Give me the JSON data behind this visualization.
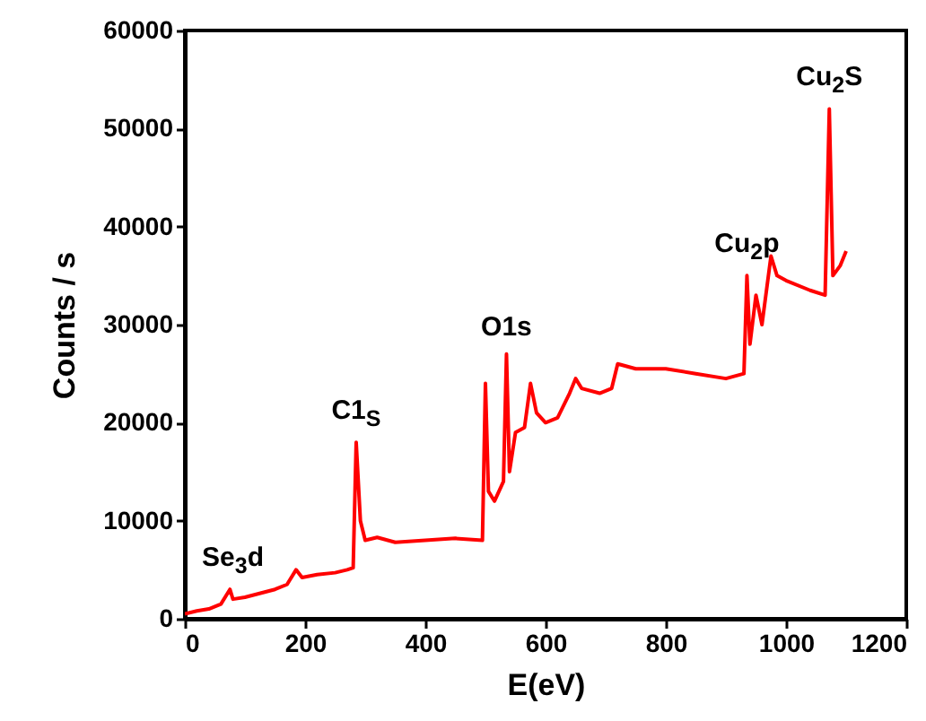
{
  "chart_data": {
    "type": "line",
    "xlabel": "E(eV)",
    "ylabel": "Counts / s",
    "xlim": [
      0,
      1200
    ],
    "xticks": [
      0,
      200,
      400,
      600,
      800,
      1000,
      1200
    ],
    "ylim": [
      0,
      60000
    ],
    "yticks": [
      0,
      10000,
      20000,
      30000,
      40000,
      50000,
      60000
    ],
    "grid": false,
    "marker": "none",
    "line_style": "solid",
    "series": [
      {
        "color": "#ff0000",
        "x": [
          0,
          20,
          40,
          60,
          75,
          80,
          100,
          150,
          170,
          185,
          195,
          220,
          250,
          270,
          280,
          285,
          292,
          300,
          320,
          350,
          400,
          450,
          495,
          500,
          505,
          515,
          530,
          535,
          540,
          550,
          565,
          575,
          585,
          600,
          620,
          640,
          650,
          660,
          690,
          710,
          720,
          750,
          800,
          850,
          900,
          930,
          935,
          940,
          950,
          960,
          975,
          985,
          1000,
          1040,
          1065,
          1072,
          1078,
          1090,
          1100
        ],
        "values": [
          500,
          800,
          1000,
          1500,
          3000,
          2000,
          2200,
          3000,
          3500,
          5000,
          4200,
          4500,
          4700,
          5000,
          5200,
          18000,
          10000,
          8000,
          8300,
          7800,
          8000,
          8200,
          8000,
          24000,
          13000,
          12000,
          14000,
          27000,
          15000,
          19000,
          19500,
          24000,
          21000,
          20000,
          20500,
          23000,
          24500,
          23500,
          23000,
          23500,
          26000,
          25500,
          25500,
          25000,
          24500,
          25000,
          35000,
          28000,
          33000,
          30000,
          37000,
          35000,
          34500,
          33500,
          33000,
          52000,
          35000,
          36000,
          37500
        ]
      }
    ],
    "annotations": [
      {
        "text": "Se$_{3}$d",
        "x": 80,
        "y": 3000
      },
      {
        "text": "C1$_{S}$",
        "x": 285,
        "y": 18000
      },
      {
        "text": "O1s",
        "x": 535,
        "y": 27000
      },
      {
        "text": "Cu$_{2}$p",
        "x": 935,
        "y": 35000
      },
      {
        "text": "Cu$_{2}$S",
        "x": 1072,
        "y": 52000
      }
    ]
  }
}
